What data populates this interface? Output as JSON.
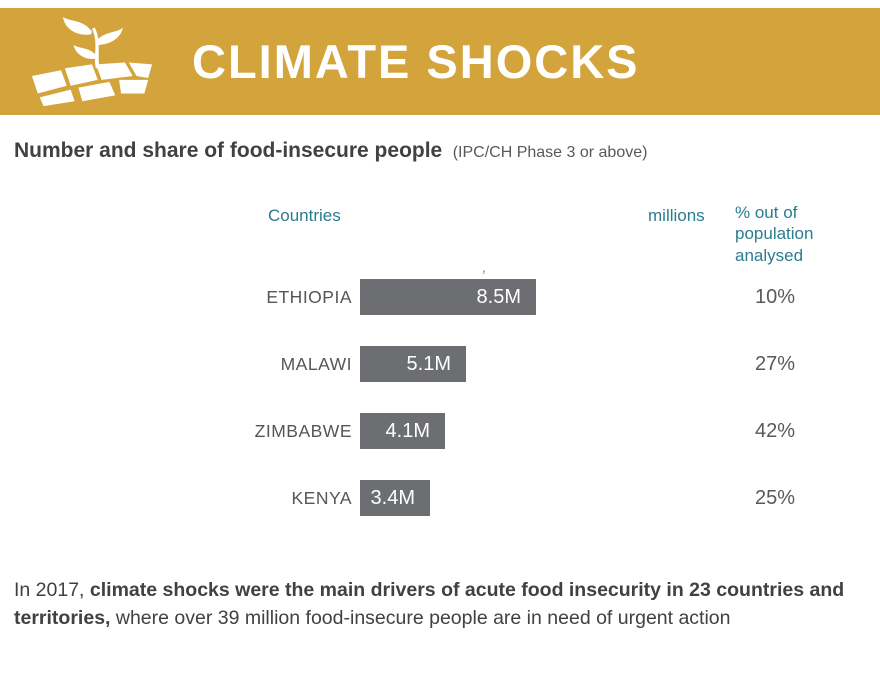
{
  "header": {
    "title": "CLIMATE SHOCKS",
    "bg_color": "#D3A43B",
    "icon": "sprout-cracked-soil-icon"
  },
  "subtitle": {
    "main": "Number and share of food-insecure people",
    "note": "(IPC/CH Phase 3 or above)"
  },
  "chart_data": {
    "type": "bar",
    "orientation": "horizontal",
    "title": "Number and share of food-insecure people (IPC/CH Phase 3 or above)",
    "columns": {
      "countries": "Countries",
      "millions": "millions",
      "percent": "% out of population analysed"
    },
    "categories": [
      "ETHIOPIA",
      "MALAWI",
      "ZIMBABWE",
      "KENYA"
    ],
    "values": [
      8.5,
      5.1,
      4.1,
      3.4
    ],
    "value_labels": [
      "8.5M",
      "5.1M",
      "4.1M",
      "3.4M"
    ],
    "percent_labels": [
      "10%",
      "27%",
      "42%",
      "25%"
    ],
    "unit": "millions",
    "xlim": [
      0,
      8.5
    ],
    "bar_color": "#6D6E71",
    "header_color": "#2A7C8E",
    "legend": "none",
    "grid": false
  },
  "decorative_mark": "’",
  "footer": {
    "prefix": "In 2017, ",
    "bold": "climate shocks were the main drivers of acute food insecurity in 23 countries and territories,",
    "suffix": " where over 39 million food-insecure people  are in need of urgent action"
  }
}
